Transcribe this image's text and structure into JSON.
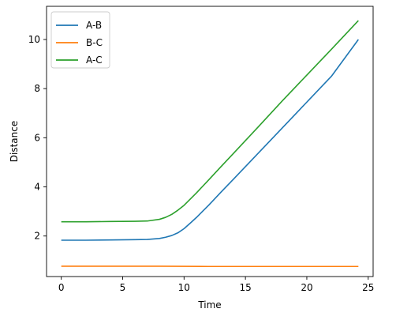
{
  "chart_data": {
    "type": "line",
    "title": "",
    "xlabel": "Time",
    "ylabel": "Distance",
    "xlim": [
      -1.2,
      25.4
    ],
    "ylim": [
      0.35,
      11.35
    ],
    "xticks": [
      0,
      5,
      10,
      15,
      20,
      25
    ],
    "yticks": [
      2,
      4,
      6,
      8,
      10
    ],
    "grid": false,
    "legend_position": "top-left",
    "series": [
      {
        "name": "A-B",
        "color": "#1f77b4",
        "x": [
          0,
          2,
          4,
          6,
          7,
          8,
          8.5,
          9,
          9.5,
          10,
          10.5,
          11,
          12,
          13,
          14,
          16,
          18,
          20,
          22,
          24.2
        ],
        "y": [
          1.83,
          1.83,
          1.84,
          1.85,
          1.86,
          1.9,
          1.95,
          2.02,
          2.13,
          2.3,
          2.52,
          2.75,
          3.25,
          3.78,
          4.3,
          5.35,
          6.4,
          7.45,
          8.5,
          10.0
        ]
      },
      {
        "name": "B-C",
        "color": "#ff7f0e",
        "x": [
          0,
          4,
          8,
          12,
          16,
          20,
          24.2
        ],
        "y": [
          0.77,
          0.77,
          0.77,
          0.76,
          0.76,
          0.76,
          0.76
        ]
      },
      {
        "name": "A-C",
        "color": "#2ca02c",
        "x": [
          0,
          2,
          4,
          6,
          7,
          8,
          8.5,
          9,
          9.5,
          10,
          10.5,
          11,
          12,
          13,
          14,
          16,
          18,
          20,
          22,
          24.2
        ],
        "y": [
          2.58,
          2.58,
          2.59,
          2.6,
          2.61,
          2.68,
          2.76,
          2.88,
          3.05,
          3.25,
          3.5,
          3.75,
          4.28,
          4.82,
          5.35,
          6.42,
          7.5,
          8.55,
          9.6,
          10.77
        ]
      }
    ]
  }
}
